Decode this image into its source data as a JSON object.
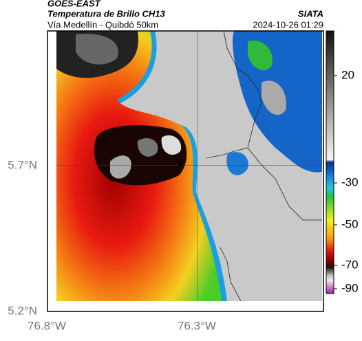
{
  "header": {
    "title": "GOES-EAST",
    "subtitle": "Temperatura de Brillo CH13",
    "region": "Vía Medellín - Quibdó 50km",
    "source": "SIATA",
    "datetime": "2024-10-26 01:29"
  },
  "map": {
    "lat_labels": [
      "5.7°N",
      "5.2°N"
    ],
    "lon_labels": [
      "76.8°W",
      "76.3°W"
    ]
  },
  "colorbar": {
    "tick_labels": [
      "20",
      "-30",
      "-50",
      "-70",
      "-90"
    ]
  }
}
